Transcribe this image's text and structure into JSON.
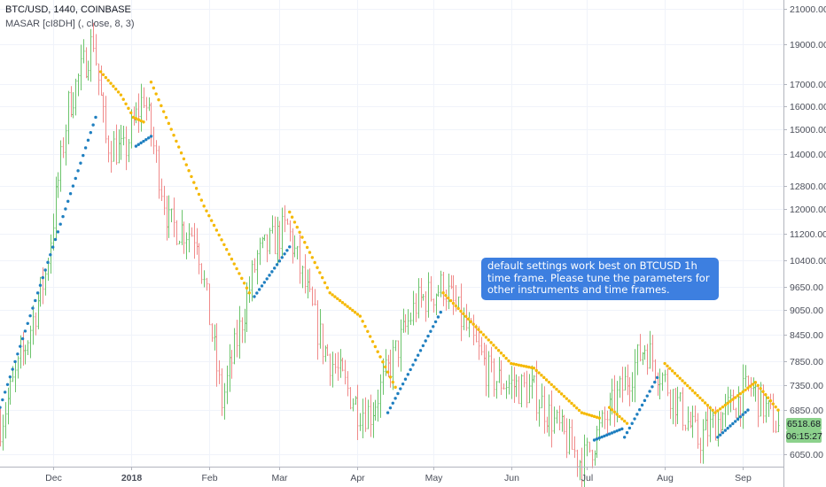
{
  "header": {
    "symbol_line": "BTC/USD, 1440, COINBASE",
    "indicator_line": "MASAR [cI8DH] (, close, 8, 3)"
  },
  "note": {
    "text": "default settings work best on BTCUSD 1h time frame. Please tune the parameters for other instruments and time frames."
  },
  "price_tags": {
    "last_price": "6518.68",
    "countdown": "06:15:27"
  },
  "colors": {
    "up": "#6cc46c",
    "down": "#f08a8a",
    "sar_above": "#f5b800",
    "sar_below": "#1f7fc0",
    "note_bg": "#3d7fe0",
    "tag_bg": "#8cd18c"
  },
  "chart_data": {
    "type": "candlestick",
    "scale": "log",
    "ylim": [
      5850,
      21500
    ],
    "y_ticks": [
      21000,
      19000,
      17000,
      16000,
      15000,
      14000,
      12800,
      12000,
      11200,
      10400,
      9650,
      9050,
      8450,
      7850,
      7350,
      6850,
      6050
    ],
    "y_tick_labels": [
      "21000.00",
      "19000.00",
      "17000.00",
      "16000.00",
      "15000.00",
      "14000.00",
      "12800.00",
      "12000.00",
      "11200.00",
      "10400.00",
      "9650.00",
      "9050.00",
      "8450.00",
      "7850.00",
      "7350.00",
      "6850.00",
      "6050.00"
    ],
    "x_labels": [
      "Dec",
      "2018",
      "Feb",
      "Mar",
      "Apr",
      "May",
      "Jun",
      "Jul",
      "Aug",
      "Sep"
    ],
    "x_label_dates": [
      "2017-12-01",
      "2018-01-01",
      "2018-02-01",
      "2018-03-01",
      "2018-04-01",
      "2018-05-01",
      "2018-06-01",
      "2018-07-01",
      "2018-08-01",
      "2018-09-01"
    ],
    "date_range": [
      "2017-11-10",
      "2018-09-15"
    ],
    "close_path": [
      [
        "2017-11-10",
        6600
      ],
      [
        "2017-11-20",
        8200
      ],
      [
        "2017-11-28",
        10000
      ],
      [
        "2017-12-07",
        16000
      ],
      [
        "2017-12-17",
        19300
      ],
      [
        "2017-12-22",
        14500
      ],
      [
        "2017-12-29",
        14000
      ],
      [
        "2018-01-06",
        16500
      ],
      [
        "2018-01-16",
        11500
      ],
      [
        "2018-01-27",
        11200
      ],
      [
        "2018-02-06",
        7000
      ],
      [
        "2018-02-20",
        10500
      ],
      [
        "2018-03-04",
        11400
      ],
      [
        "2018-03-18",
        8200
      ],
      [
        "2018-04-01",
        6900
      ],
      [
        "2018-04-06",
        6800
      ],
      [
        "2018-04-24",
        9200
      ],
      [
        "2018-05-05",
        9700
      ],
      [
        "2018-05-24",
        7500
      ],
      [
        "2018-06-10",
        7200
      ],
      [
        "2018-06-29",
        5900
      ],
      [
        "2018-07-24",
        8200
      ],
      [
        "2018-08-14",
        6300
      ],
      [
        "2018-09-04",
        7300
      ],
      [
        "2018-09-15",
        6518
      ]
    ],
    "sar_segments": [
      {
        "side": "below",
        "points": [
          [
            "2017-11-10",
            6900
          ],
          [
            "2017-12-18",
            15500
          ]
        ]
      },
      {
        "side": "above",
        "points": [
          [
            "2017-12-20",
            17600
          ],
          [
            "2017-12-28",
            16500
          ],
          [
            "2018-01-02",
            15500
          ],
          [
            "2018-01-06",
            15300
          ]
        ]
      },
      {
        "side": "below",
        "points": [
          [
            "2018-01-03",
            14300
          ],
          [
            "2018-01-09",
            14700
          ]
        ]
      },
      {
        "side": "above",
        "points": [
          [
            "2018-01-09",
            17100
          ],
          [
            "2018-01-30",
            12100
          ],
          [
            "2018-02-17",
            9500
          ]
        ]
      },
      {
        "side": "below",
        "points": [
          [
            "2018-02-19",
            9400
          ],
          [
            "2018-03-05",
            10800
          ]
        ]
      },
      {
        "side": "above",
        "points": [
          [
            "2018-03-05",
            11900
          ],
          [
            "2018-03-21",
            9500
          ],
          [
            "2018-04-02",
            8900
          ],
          [
            "2018-04-16",
            7300
          ]
        ]
      },
      {
        "side": "below",
        "points": [
          [
            "2018-04-13",
            6800
          ],
          [
            "2018-05-04",
            9000
          ]
        ]
      },
      {
        "side": "above",
        "points": [
          [
            "2018-05-05",
            9500
          ],
          [
            "2018-06-01",
            7800
          ],
          [
            "2018-06-10",
            7700
          ],
          [
            "2018-06-29",
            6800
          ],
          [
            "2018-07-06",
            6700
          ]
        ]
      },
      {
        "side": "below",
        "points": [
          [
            "2018-07-04",
            6300
          ],
          [
            "2018-07-15",
            6500
          ]
        ]
      },
      {
        "side": "above",
        "points": [
          [
            "2018-07-10",
            6900
          ],
          [
            "2018-07-17",
            6600
          ]
        ]
      },
      {
        "side": "below",
        "points": [
          [
            "2018-07-16",
            6350
          ],
          [
            "2018-07-29",
            7500
          ]
        ]
      },
      {
        "side": "above",
        "points": [
          [
            "2018-08-01",
            7800
          ],
          [
            "2018-08-21",
            6800
          ],
          [
            "2018-09-06",
            7400
          ],
          [
            "2018-09-15",
            6850
          ]
        ]
      },
      {
        "side": "below",
        "points": [
          [
            "2018-08-22",
            6350
          ],
          [
            "2018-09-03",
            6850
          ]
        ]
      }
    ]
  }
}
